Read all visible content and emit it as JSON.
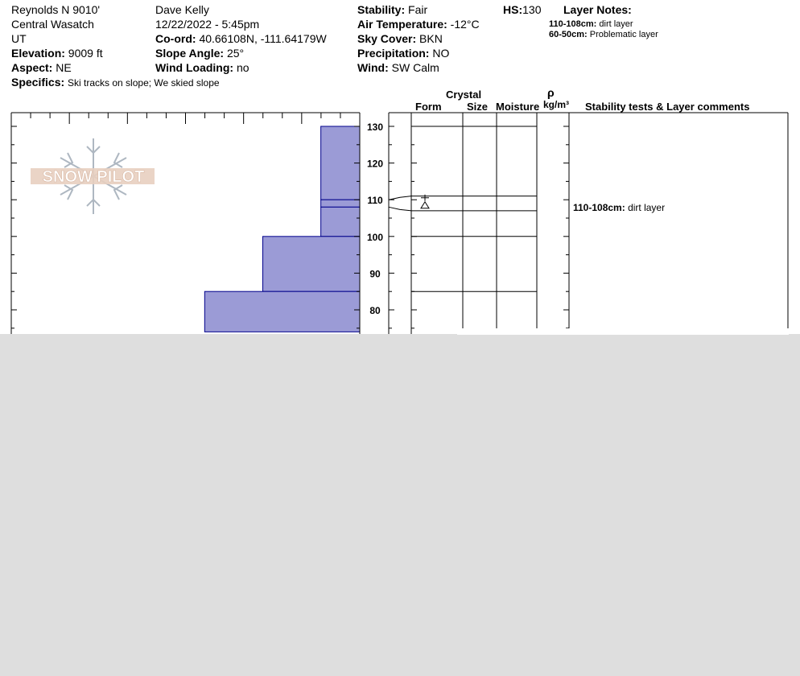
{
  "header": {
    "location": "Reynolds N 9010'",
    "range": "Central Wasatch",
    "state": "UT",
    "elevation_label": "Elevation:",
    "elevation_value": "9009 ft",
    "aspect_label": "Aspect:",
    "aspect_value": "NE",
    "specifics_label": "Specifics:",
    "specifics_value": "Ski tracks on slope; We skied slope",
    "observer": "Dave Kelly",
    "datetime": "12/22/2022 - 5:45pm",
    "coord_label": "Co-ord:",
    "coord_value": "40.66108N, -111.64179W",
    "slope_label": "Slope Angle:",
    "slope_value": "25°",
    "wind_loading_label": "Wind Loading:",
    "wind_loading_value": "no",
    "stability_label": "Stability:",
    "stability_value": "Fair",
    "air_temp_label": "Air Temperature:",
    "air_temp_value": "-12°C",
    "sky_label": "Sky Cover:",
    "sky_value": "BKN",
    "precip_label": "Precipitation:",
    "precip_value": "NO",
    "wind_label": "Wind:",
    "wind_value": "SW  Calm",
    "hs_label": "HS:",
    "hs_value": "130",
    "layer_notes_label": "Layer Notes:",
    "layer_notes": [
      {
        "range": "110-108cm:",
        "text": "dirt layer"
      },
      {
        "range": "60-50cm:",
        "text": "Problematic layer"
      }
    ]
  },
  "logo_text": "SNOW PILOT",
  "columns": {
    "crystal": "Crystal",
    "form": "Form",
    "size": "Size",
    "moisture": "Moisture",
    "rho": "ρ",
    "density_unit": "kg/m³",
    "comments": "Stability tests & Layer comments"
  },
  "layer_comments": [
    {
      "range": "110-108cm:",
      "text": "dirt layer"
    }
  ],
  "chart_data": {
    "type": "bar",
    "orientation": "horizontal",
    "y_ticks": [
      130,
      120,
      110,
      100,
      90,
      80
    ],
    "ylim": [
      74,
      134
    ],
    "hardness_xlim": [
      0,
      6
    ],
    "layers": [
      {
        "top": 130,
        "bottom": 110,
        "hardness": 0.67
      },
      {
        "top": 110,
        "bottom": 108,
        "hardness": 0.67
      },
      {
        "top": 108,
        "bottom": 100,
        "hardness": 0.67
      },
      {
        "top": 100,
        "bottom": 85,
        "hardness": 1.67
      },
      {
        "top": 85,
        "bottom": 74,
        "hardness": 2.67
      }
    ],
    "layer_lines_right": [
      130,
      111,
      107,
      100,
      85
    ],
    "grain_symbol": {
      "height": 109,
      "glyph": "⩓"
    },
    "colors": {
      "bar": "#9b9bd6",
      "bar_stroke": "#00008b"
    }
  }
}
